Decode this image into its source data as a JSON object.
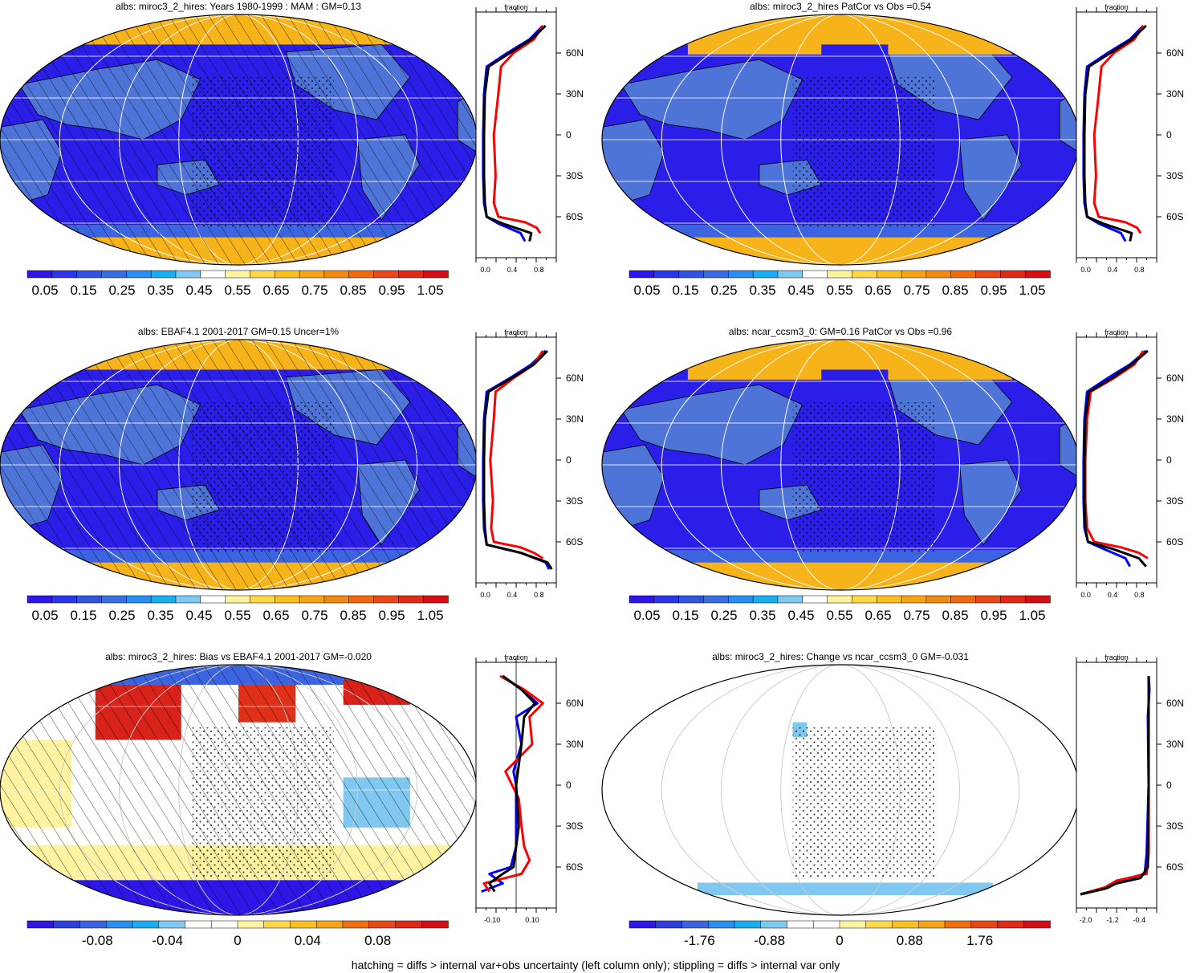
{
  "footer": "hatching = diffs > internal var+obs uncertainty (left column only); stippling = diffs > internal var only",
  "colors": {
    "ocean_low": "#2a1ee8",
    "land_mid": "#4f74d8",
    "sea_ice": "#f5b318",
    "high": "#e8221c",
    "series_obs": "#0000ff",
    "series_model": "#ff0000",
    "series_mean": "#000000"
  },
  "chart_data": [
    {
      "type": "heatmap",
      "title": "albs: miroc3_2_hires: Years 1980-1999 : MAM : GM=0.13",
      "map_style": "abs",
      "hatched": true,
      "stippled": true,
      "colorbar_labels": [
        "0.05",
        "0.15",
        "0.25",
        "0.35",
        "0.45",
        "0.55",
        "0.65",
        "0.75",
        "0.85",
        "0.95",
        "1.05"
      ],
      "profile": {
        "label": "fraction",
        "xticks": [
          "0.0",
          "0.4",
          "0.8"
        ],
        "xlim": [
          0,
          0.9
        ],
        "lat_ticks": [
          "60N",
          "30N",
          "0",
          "30S",
          "60S"
        ],
        "series": [
          {
            "color": "#0000ff",
            "lat": [
              -78,
              -72,
              -65,
              -60,
              -50,
              -30,
              0,
              30,
              50,
              60,
              70,
              80
            ],
            "values": [
              0.55,
              0.5,
              0.25,
              0.12,
              0.09,
              0.08,
              0.08,
              0.09,
              0.12,
              0.35,
              0.6,
              0.75
            ]
          },
          {
            "color": "#ff0000",
            "lat": [
              -72,
              -68,
              -64,
              -60,
              -50,
              -30,
              0,
              30,
              50,
              60,
              70,
              80
            ],
            "values": [
              0.72,
              0.68,
              0.55,
              0.25,
              0.2,
              0.22,
              0.2,
              0.25,
              0.28,
              0.42,
              0.65,
              0.75
            ]
          },
          {
            "color": "#000000",
            "lat": [
              -78,
              -72,
              -65,
              -60,
              -50,
              -30,
              0,
              30,
              50,
              60,
              70,
              80
            ],
            "values": [
              0.6,
              0.62,
              0.3,
              0.12,
              0.1,
              0.09,
              0.09,
              0.1,
              0.14,
              0.38,
              0.62,
              0.78
            ]
          }
        ]
      }
    },
    {
      "type": "heatmap",
      "title": "albs: miroc3_2_hires PatCor vs Obs =0.54",
      "map_style": "abs",
      "hatched": false,
      "stippled": true,
      "colorbar_labels": [
        "0.05",
        "0.15",
        "0.25",
        "0.35",
        "0.45",
        "0.55",
        "0.65",
        "0.75",
        "0.85",
        "0.95",
        "1.05"
      ],
      "profile": {
        "label": "fraction",
        "xticks": [
          "0.0",
          "0.4",
          "0.8"
        ],
        "xlim": [
          0,
          0.9
        ],
        "lat_ticks": [
          "60N",
          "30N",
          "0",
          "30S",
          "60S"
        ],
        "series": [
          {
            "color": "#0000ff",
            "lat": [
              -78,
              -72,
              -65,
              -60,
              -50,
              -30,
              0,
              30,
              50,
              60,
              70,
              80
            ],
            "values": [
              0.55,
              0.5,
              0.25,
              0.12,
              0.09,
              0.08,
              0.08,
              0.09,
              0.12,
              0.35,
              0.6,
              0.75
            ]
          },
          {
            "color": "#ff0000",
            "lat": [
              -72,
              -68,
              -64,
              -60,
              -50,
              -30,
              0,
              30,
              50,
              60,
              70,
              80
            ],
            "values": [
              0.72,
              0.68,
              0.55,
              0.25,
              0.2,
              0.22,
              0.2,
              0.25,
              0.28,
              0.42,
              0.65,
              0.75
            ]
          },
          {
            "color": "#000000",
            "lat": [
              -78,
              -72,
              -65,
              -60,
              -50,
              -30,
              0,
              30,
              50,
              60,
              70,
              80
            ],
            "values": [
              0.6,
              0.62,
              0.3,
              0.12,
              0.1,
              0.09,
              0.09,
              0.1,
              0.14,
              0.38,
              0.62,
              0.78
            ]
          }
        ]
      }
    },
    {
      "type": "heatmap",
      "title": "albs: EBAF4.1 2001-2017 GM=0.15 Uncer=1%",
      "map_style": "abs",
      "hatched": true,
      "stippled": true,
      "colorbar_labels": [
        "0.05",
        "0.15",
        "0.25",
        "0.35",
        "0.45",
        "0.55",
        "0.65",
        "0.75",
        "0.85",
        "0.95",
        "1.05"
      ],
      "profile": {
        "label": "fraction",
        "xticks": [
          "0.0",
          "0.4",
          "0.8"
        ],
        "xlim": [
          0,
          0.9
        ],
        "lat_ticks": [
          "60N",
          "30N",
          "0",
          "30S",
          "60S"
        ],
        "series": [
          {
            "color": "#0000ff",
            "lat": [
              -80,
              -75,
              -68,
              -62,
              -50,
              -30,
              0,
              30,
              50,
              60,
              70,
              80
            ],
            "values": [
              0.82,
              0.78,
              0.5,
              0.12,
              0.09,
              0.08,
              0.08,
              0.09,
              0.12,
              0.38,
              0.62,
              0.78
            ]
          },
          {
            "color": "#ff0000",
            "lat": [
              -72,
              -68,
              -64,
              -60,
              -50,
              -30,
              0,
              30,
              50,
              60,
              70,
              80
            ],
            "values": [
              0.75,
              0.65,
              0.5,
              0.2,
              0.17,
              0.19,
              0.16,
              0.2,
              0.22,
              0.42,
              0.65,
              0.75
            ]
          },
          {
            "color": "#000000",
            "lat": [
              -80,
              -75,
              -68,
              -62,
              -50,
              -30,
              0,
              30,
              50,
              60,
              70,
              80
            ],
            "values": [
              0.85,
              0.8,
              0.5,
              0.12,
              0.1,
              0.09,
              0.09,
              0.1,
              0.14,
              0.4,
              0.65,
              0.8
            ]
          }
        ]
      }
    },
    {
      "type": "heatmap",
      "title": "albs: ncar_ccsm3_0: GM=0.16 PatCor vs Obs =0.96",
      "map_style": "abs",
      "hatched": false,
      "stippled": true,
      "colorbar_labels": [
        "0.05",
        "0.15",
        "0.25",
        "0.35",
        "0.45",
        "0.55",
        "0.65",
        "0.75",
        "0.85",
        "0.95",
        "1.05"
      ],
      "profile": {
        "label": "fraction",
        "xticks": [
          "0.0",
          "0.4",
          "0.8"
        ],
        "xlim": [
          0,
          0.9
        ],
        "lat_ticks": [
          "60N",
          "30N",
          "0",
          "30S",
          "60S"
        ],
        "series": [
          {
            "color": "#0000ff",
            "lat": [
              -78,
              -72,
              -65,
              -60,
              -50,
              -30,
              0,
              30,
              50,
              60,
              70,
              80
            ],
            "values": [
              0.6,
              0.55,
              0.3,
              0.13,
              0.09,
              0.08,
              0.08,
              0.09,
              0.12,
              0.35,
              0.6,
              0.78
            ]
          },
          {
            "color": "#ff0000",
            "lat": [
              -72,
              -68,
              -64,
              -60,
              -50,
              -30,
              0,
              30,
              50,
              60,
              70,
              80
            ],
            "values": [
              0.8,
              0.7,
              0.5,
              0.2,
              0.12,
              0.1,
              0.1,
              0.12,
              0.16,
              0.42,
              0.65,
              0.75
            ]
          },
          {
            "color": "#000000",
            "lat": [
              -78,
              -72,
              -65,
              -60,
              -50,
              -30,
              0,
              30,
              50,
              60,
              70,
              80
            ],
            "values": [
              0.78,
              0.7,
              0.4,
              0.13,
              0.1,
              0.09,
              0.09,
              0.1,
              0.14,
              0.4,
              0.62,
              0.8
            ]
          }
        ]
      }
    },
    {
      "type": "heatmap",
      "title": "albs: miroc3_2_hires: Bias vs EBAF4.1 2001-2017 GM=-0.020",
      "map_style": "bias",
      "hatched": true,
      "stippled": true,
      "colorbar_labels": [
        "-0.08",
        "-0.04",
        "0",
        "0.04",
        "0.08"
      ],
      "profile": {
        "label": "fraction",
        "xticks": [
          "-0.10",
          "0.10"
        ],
        "xlim": [
          -0.15,
          0.15
        ],
        "lat_ticks": [
          "60N",
          "30N",
          "0",
          "30S",
          "60S"
        ],
        "series": [
          {
            "color": "#0000ff",
            "lat": [
              -78,
              -72,
              -65,
              -60,
              -45,
              -30,
              0,
              10,
              30,
              50,
              60,
              70,
              80
            ],
            "values": [
              -0.13,
              -0.05,
              -0.1,
              -0.02,
              0,
              0,
              0,
              -0.01,
              0.02,
              0,
              0.08,
              0.02,
              -0.05
            ]
          },
          {
            "color": "#ff0000",
            "lat": [
              -78,
              -72,
              -65,
              -55,
              -45,
              -30,
              -10,
              10,
              30,
              50,
              60,
              70,
              80
            ],
            "values": [
              -0.1,
              -0.12,
              0.02,
              0.05,
              0.03,
              0.02,
              0.01,
              -0.04,
              0.06,
              0.05,
              0.1,
              0.03,
              -0.06
            ]
          },
          {
            "color": "#000000",
            "lat": [
              -78,
              -72,
              -65,
              -60,
              -45,
              -30,
              0,
              30,
              50,
              60,
              70,
              80
            ],
            "values": [
              -0.08,
              -0.1,
              -0.05,
              -0.01,
              0,
              0.01,
              0,
              0.02,
              0.03,
              0.07,
              0.02,
              -0.05
            ]
          }
        ]
      }
    },
    {
      "type": "heatmap",
      "title": "albs: miroc3_2_hires: Change vs ncar_ccsm3_0 GM=-0.031",
      "map_style": "change",
      "hatched": false,
      "stippled": true,
      "colorbar_labels": [
        "-1.76",
        "-0.88",
        "0",
        "0.88",
        "1.76"
      ],
      "profile": {
        "label": "fraction",
        "xticks": [
          "-2.0",
          "-1.2",
          "-0.4"
        ],
        "xlim": [
          -2.2,
          -0.2
        ],
        "lat_ticks": [
          "60N",
          "30N",
          "0",
          "30S",
          "60S"
        ],
        "series": [
          {
            "color": "#0000ff",
            "lat": [
              -80,
              -75,
              -70,
              -65,
              -50,
              0,
              50,
              70,
              80
            ],
            "values": [
              -2.1,
              -1.4,
              -1.1,
              -0.5,
              -0.45,
              -0.4,
              -0.42,
              -0.38,
              -0.4
            ]
          },
          {
            "color": "#ff0000",
            "lat": [
              -80,
              -75,
              -70,
              -65,
              -50,
              0,
              50,
              70,
              80
            ],
            "values": [
              -2.1,
              -1.5,
              -1.2,
              -0.45,
              -0.4,
              -0.4,
              -0.4,
              -0.4,
              -0.4
            ]
          },
          {
            "color": "#000000",
            "lat": [
              -80,
              -76,
              -72,
              -68,
              -60,
              0,
              60,
              80
            ],
            "values": [
              -2.1,
              -1.5,
              -1.2,
              -0.6,
              -0.42,
              -0.4,
              -0.4,
              -0.4
            ]
          }
        ]
      }
    }
  ]
}
